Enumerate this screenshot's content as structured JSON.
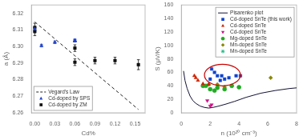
{
  "chart_data": [
    {
      "type": "scatter",
      "xlabel": "Cd%",
      "ylabel": "a (Å)",
      "xlim": [
        -0.005,
        0.165
      ],
      "ylim": [
        6.26,
        6.325
      ],
      "xticks": [
        {
          "value": 0.0,
          "label": "0.00"
        },
        0.03,
        0.06,
        0.09,
        0.12,
        0.15
      ],
      "yticks": [
        6.26,
        6.27,
        6.28,
        6.29,
        {
          "value": 6.3,
          "label": "6.30"
        },
        6.31,
        6.32
      ],
      "grid": false,
      "legend": "lower left",
      "series": [
        {
          "name": "Vegard's Law",
          "type": "line",
          "line_style": "dashed",
          "color": "#222222",
          "x": [
            0.0,
            0.155
          ],
          "values": [
            6.3148,
            6.262
          ]
        },
        {
          "name": "Cd-doped by SPS",
          "type": "scatter",
          "marker": "triangle",
          "color": "#2244cc",
          "x": [
            0.0,
            0.01,
            0.03,
            0.06,
            0.06,
            0.06
          ],
          "values": [
            6.3105,
            6.3005,
            6.3025,
            6.3035,
            6.3035,
            6.3035
          ],
          "yerr": [
            0.0008,
            0.0008,
            0.0008,
            0.0008,
            0.0008,
            0.0008
          ]
        },
        {
          "name": "Cd-doped by ZM",
          "type": "scatter",
          "marker": "square",
          "color": "#111111",
          "x": [
            0.0,
            0.0,
            0.06,
            0.06,
            0.09,
            0.12,
            0.155
          ],
          "values": [
            6.3115,
            6.309,
            6.299,
            6.2905,
            6.2915,
            6.2915,
            6.289
          ],
          "yerr": [
            0.0025,
            0.0025,
            0.002,
            0.002,
            0.002,
            0.002,
            0.003
          ]
        }
      ]
    },
    {
      "type": "scatter",
      "xlabel": "n (10²⁰ cm⁻³)",
      "ylabel": "S (μV/K)",
      "xlim": [
        0,
        8
      ],
      "ylim": [
        0,
        160
      ],
      "xticks": [
        0,
        2,
        4,
        6,
        8
      ],
      "yticks": [
        0,
        20,
        40,
        60,
        80,
        100,
        120,
        140,
        160
      ],
      "grid": false,
      "legend": "upper right",
      "series": [
        {
          "name": "Pisarenko plot",
          "type": "line",
          "line_style": "solid",
          "color": "#111133",
          "x": [
            0.15,
            0.25,
            0.4,
            0.6,
            0.8,
            1.0,
            1.3,
            1.6,
            1.9,
            2.2,
            2.6,
            3.1,
            3.7,
            4.5,
            5.5,
            6.5,
            7.5,
            8.0
          ],
          "values": [
            62,
            48,
            36,
            25,
            18,
            14,
            10,
            8,
            7,
            8,
            10,
            13,
            17,
            23,
            29,
            33,
            36,
            37
          ]
        },
        {
          "name": "Cd-doped SnTe (this work)",
          "type": "scatter",
          "marker": "square",
          "color": "#1144cc",
          "x": [
            2.0,
            2.1,
            2.3,
            2.5,
            2.7,
            2.8,
            3.0,
            3.3,
            3.8,
            4.1
          ],
          "values": [
            50,
            65,
            60,
            55,
            48,
            55,
            50,
            52,
            55,
            55
          ]
        },
        {
          "name": "Cd-doped SnTe",
          "type": "scatter",
          "marker": "triangle",
          "color": "#cc2200",
          "x": [
            0.9,
            1.0,
            1.15,
            1.5,
            1.9
          ],
          "values": [
            55,
            52,
            48,
            43,
            42
          ]
        },
        {
          "name": "Cd-doped SnTe",
          "type": "scatter",
          "marker": "triangle_down",
          "color": "#cc1188",
          "x": [
            1.8,
            2.0,
            2.1
          ],
          "values": [
            18,
            10,
            12
          ]
        },
        {
          "name": "Mg-doped SnTe",
          "type": "scatter",
          "marker": "circle",
          "color": "#22aa22",
          "x": [
            1.5,
            1.7,
            2.0,
            2.3,
            2.5,
            3.0,
            3.5,
            4.0
          ],
          "values": [
            40,
            40,
            35,
            33,
            37,
            35,
            40,
            38
          ]
        },
        {
          "name": "Mn-doped SnTe",
          "type": "scatter",
          "marker": "diamond",
          "color": "#888800",
          "x": [
            1.5,
            1.9,
            2.5,
            3.0,
            6.2
          ],
          "values": [
            40,
            42,
            42,
            38,
            52
          ]
        },
        {
          "name": "Mn-doped SnTe",
          "type": "scatter",
          "marker": "star",
          "color": "#22bb88",
          "x": [
            2.0,
            2.5,
            3.5,
            4.0
          ],
          "values": [
            35,
            38,
            40,
            38
          ]
        }
      ],
      "ellipse": {
        "cx": 2.85,
        "cy": 56,
        "rx": 1.25,
        "ry": 16,
        "angle": 0,
        "color": "#cc0000"
      }
    }
  ]
}
